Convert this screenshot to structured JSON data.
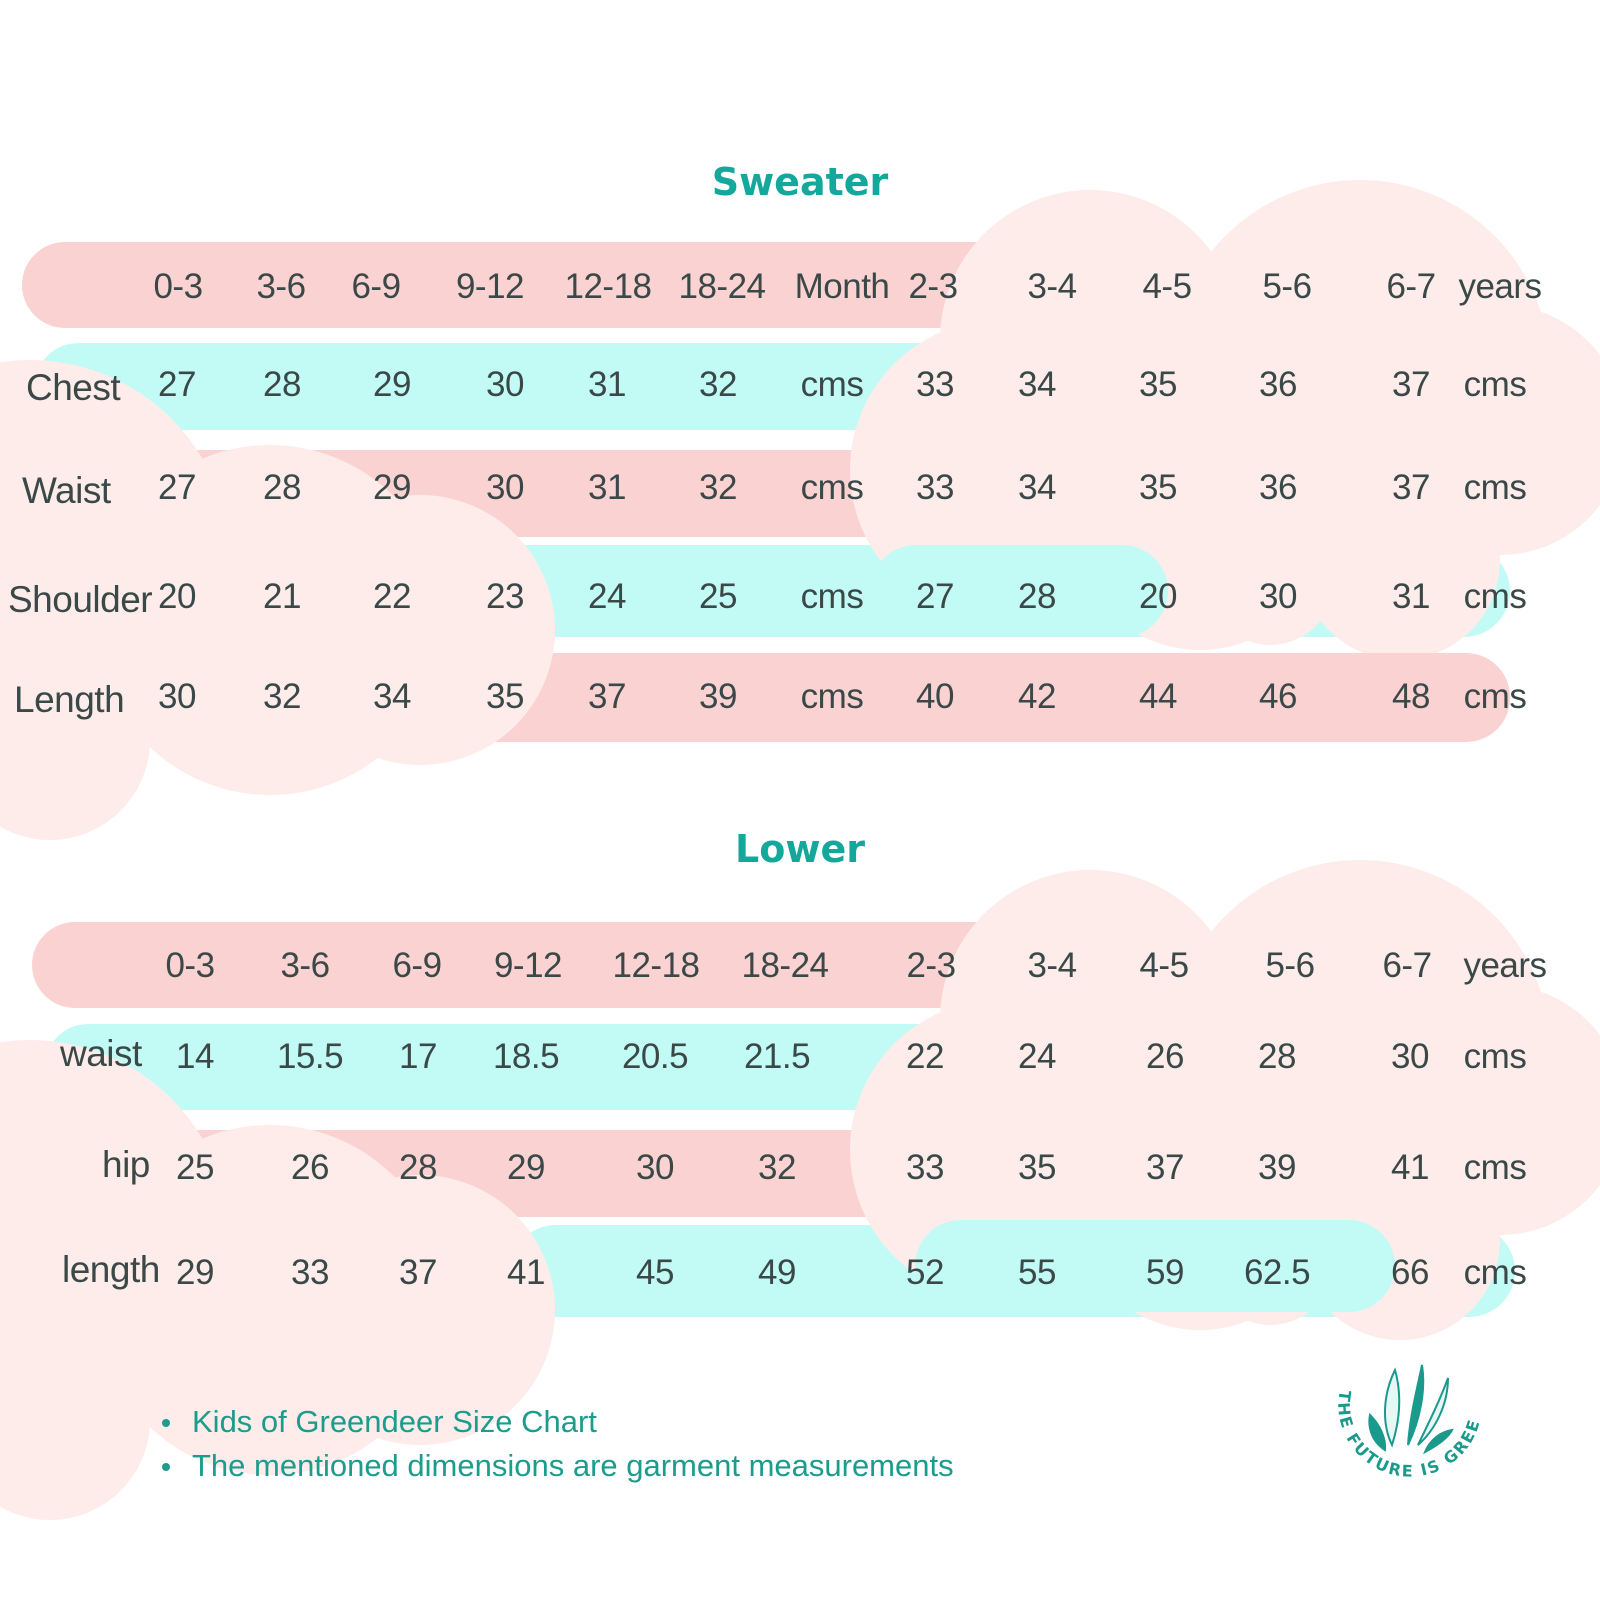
{
  "colors": {
    "pink_band": "#fbd2d2",
    "cyan_band": "#c2fbf5",
    "cloud": "#fdecea",
    "title": "#13a89b",
    "text": "#3b4848"
  },
  "sweater": {
    "title": "Sweater",
    "header": [
      "0-3",
      "3-6",
      "6-9",
      "9-12",
      "12-18",
      "18-24",
      "Month",
      "2-3",
      "3-4",
      "4-5",
      "5-6",
      "6-7",
      "years"
    ],
    "rows": [
      {
        "label": "Chest",
        "values": [
          "27",
          "28",
          "29",
          "30",
          "31",
          "32",
          "cms",
          "33",
          "34",
          "35",
          "36",
          "37",
          "cms"
        ]
      },
      {
        "label": "Waist",
        "values": [
          "27",
          "28",
          "29",
          "30",
          "31",
          "32",
          "cms",
          "33",
          "34",
          "35",
          "36",
          "37",
          "cms"
        ]
      },
      {
        "label": "Shoulder",
        "values": [
          "20",
          "21",
          "22",
          "23",
          "24",
          "25",
          "cms",
          "27",
          "28",
          "20",
          "30",
          "31",
          "cms"
        ]
      },
      {
        "label": "Length",
        "values": [
          "30",
          "32",
          "34",
          "35",
          "37",
          "39",
          "cms",
          "40",
          "42",
          "44",
          "46",
          "48",
          "cms"
        ]
      }
    ]
  },
  "lower": {
    "title": "Lower",
    "header": [
      "0-3",
      "3-6",
      "6-9",
      "9-12",
      "12-18",
      "18-24",
      "2-3",
      "3-4",
      "4-5",
      "5-6",
      "6-7",
      "years"
    ],
    "rows": [
      {
        "label": "waist",
        "values": [
          "14",
          "15.5",
          "17",
          "18.5",
          "20.5",
          "21.5",
          "22",
          "24",
          "26",
          "28",
          "30",
          "cms"
        ]
      },
      {
        "label": "hip",
        "values": [
          "25",
          "26",
          "28",
          "29",
          "30",
          "32",
          "33",
          "35",
          "37",
          "39",
          "41",
          "cms"
        ]
      },
      {
        "label": "length",
        "values": [
          "29",
          "33",
          "37",
          "41",
          "45",
          "49",
          "52",
          "55",
          "59",
          "62.5",
          "66",
          "cms"
        ]
      }
    ]
  },
  "notes": [
    "Kids of Greendeer Size Chart",
    "The mentioned dimensions are garment measurements"
  ],
  "logo": {
    "text": "THE FUTURE IS GREEN",
    "icon": "leaves-icon"
  }
}
